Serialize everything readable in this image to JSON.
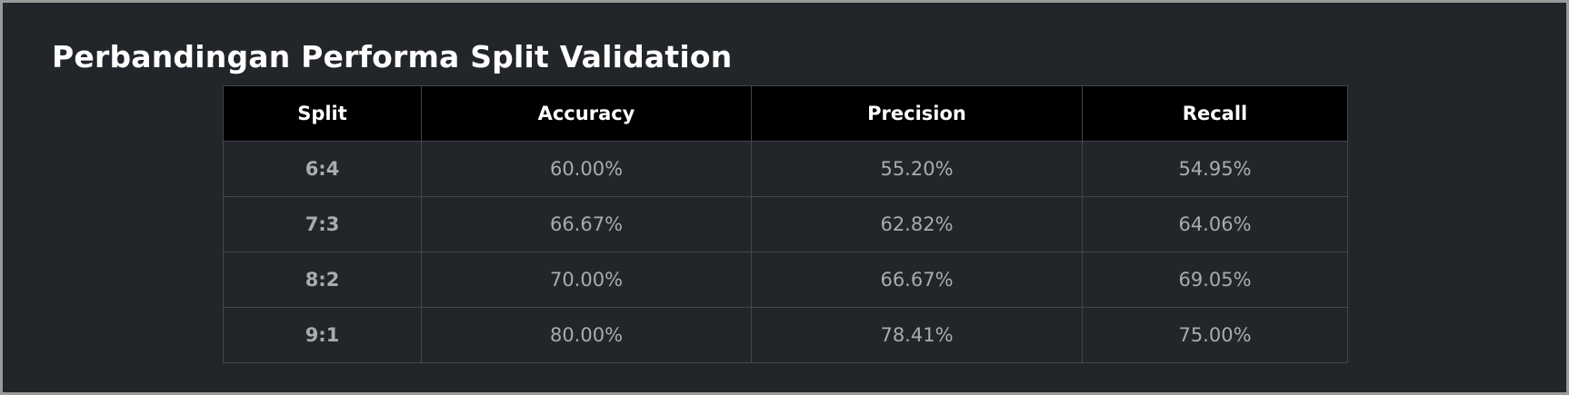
{
  "page": {
    "title": "Perbandingan Performa Split Validation"
  },
  "table": {
    "headers": [
      "Split",
      "Accuracy",
      "Precision",
      "Recall"
    ],
    "rows": [
      {
        "split": "6:4",
        "accuracy": "60.00%",
        "precision": "55.20%",
        "recall": "54.95%"
      },
      {
        "split": "7:3",
        "accuracy": "66.67%",
        "precision": "62.82%",
        "recall": "64.06%"
      },
      {
        "split": "8:2",
        "accuracy": "70.00%",
        "precision": "66.67%",
        "recall": "69.05%"
      },
      {
        "split": "9:1",
        "accuracy": "80.00%",
        "precision": "78.41%",
        "recall": "75.00%"
      }
    ]
  },
  "colors": {
    "background": "#222529",
    "header_bg": "#000000",
    "header_text": "#ffffff",
    "cell_text": "#a7acb1",
    "border": "#43474c"
  }
}
